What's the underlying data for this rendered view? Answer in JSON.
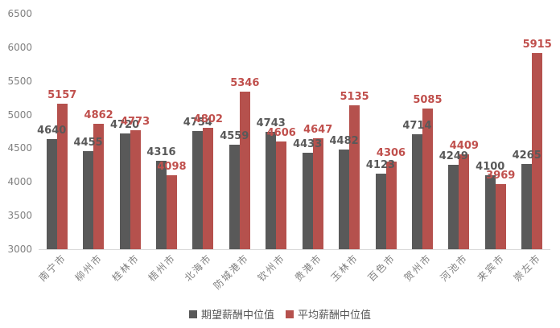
{
  "chart_data": {
    "type": "bar",
    "categories": [
      "南宁市",
      "柳州市",
      "桂林市",
      "梧州市",
      "北海市",
      "防城港市",
      "钦州市",
      "贵港市",
      "玉林市",
      "百色市",
      "贺州市",
      "河池市",
      "来宾市",
      "崇左市"
    ],
    "series": [
      {
        "name": "期望薪酬中位值",
        "bar_color": "#595959",
        "label_color": "#595959",
        "values": [
          4640,
          4455,
          4720,
          4316,
          4754,
          4559,
          4743,
          4433,
          4482,
          4123,
          4714,
          4249,
          4100,
          4265
        ]
      },
      {
        "name": "平均薪酬中位值",
        "bar_color": "#b5514d",
        "label_color": "#c0504d",
        "values": [
          5157,
          4862,
          4773,
          4098,
          4802,
          5346,
          4606,
          4647,
          5135,
          4306,
          5085,
          4409,
          3969,
          5915
        ]
      }
    ],
    "title": "",
    "xlabel": "",
    "ylabel": "",
    "ylim": [
      3000,
      6500
    ],
    "yticks": [
      3000,
      3500,
      4000,
      4500,
      5000,
      5500,
      6000,
      6500
    ],
    "grid": false,
    "data_labels": true,
    "legend_position": "bottom"
  },
  "colors": {
    "background": "#ffffff",
    "axis_line": "#d9d9d9",
    "axis_text": "#808080",
    "legend_text": "#595959"
  }
}
